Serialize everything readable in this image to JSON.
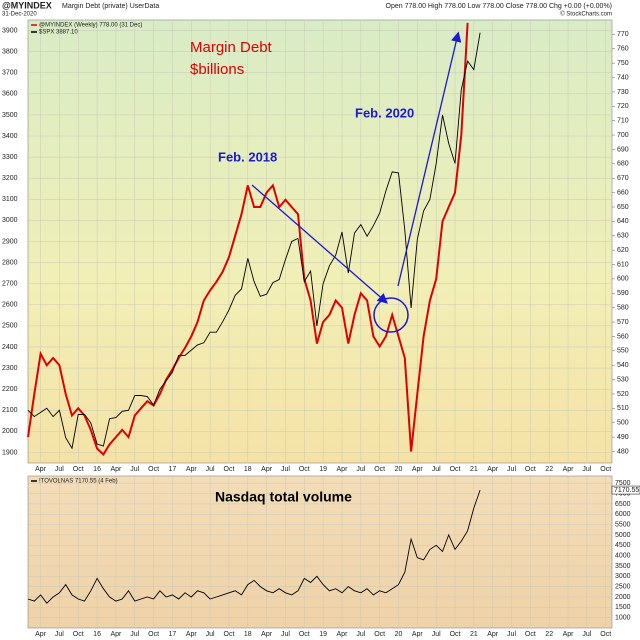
{
  "chart_data": [
    {
      "type": "line",
      "title": "@MYINDEX",
      "subtitle": "Margin Debt (private) UserData",
      "date": "31-Dec-2020",
      "quote": "Open 778.00 High 778.00 Low 778.00 Close 778.00 Chg +0.00 (+0.00%)",
      "credit": "© StockCharts.com",
      "annotations": [
        {
          "text": "Margin Debt",
          "color": "#e00000"
        },
        {
          "text": "$billions",
          "color": "#e00000"
        },
        {
          "text": "Feb. 2018",
          "color": "#1a1ad0"
        },
        {
          "text": "Feb. 2020",
          "color": "#1a1ad0"
        }
      ],
      "x": [
        "2015-02",
        "2015-03",
        "2015-04",
        "2015-05",
        "2015-06",
        "2015-07",
        "2015-08",
        "2015-09",
        "2015-10",
        "2015-11",
        "2015-12",
        "2016-01",
        "2016-02",
        "2016-03",
        "2016-04",
        "2016-05",
        "2016-06",
        "2016-07",
        "2016-08",
        "2016-09",
        "2016-10",
        "2016-11",
        "2016-12",
        "2017-01",
        "2017-02",
        "2017-03",
        "2017-04",
        "2017-05",
        "2017-06",
        "2017-07",
        "2017-08",
        "2017-09",
        "2017-10",
        "2017-11",
        "2017-12",
        "2018-01",
        "2018-02",
        "2018-03",
        "2018-04",
        "2018-05",
        "2018-06",
        "2018-07",
        "2018-08",
        "2018-09",
        "2018-10",
        "2018-11",
        "2018-12",
        "2019-01",
        "2019-02",
        "2019-03",
        "2019-04",
        "2019-05",
        "2019-06",
        "2019-07",
        "2019-08",
        "2019-09",
        "2019-10",
        "2019-11",
        "2019-12",
        "2020-01",
        "2020-02",
        "2020-03",
        "2020-04",
        "2020-05",
        "2020-06",
        "2020-07",
        "2020-08",
        "2020-09",
        "2020-10",
        "2020-11",
        "2020-12",
        "2021-01",
        "2021-02"
      ],
      "xlim": [
        "2015-02",
        "2022-11"
      ],
      "xticks": [
        {
          "value": "2015-04",
          "label": "Apr"
        },
        {
          "value": "2015-07",
          "label": "Jul"
        },
        {
          "value": "2015-10",
          "label": "Oct"
        },
        {
          "value": "2016-01",
          "label": "16"
        },
        {
          "value": "2016-04",
          "label": "Apr"
        },
        {
          "value": "2016-07",
          "label": "Jul"
        },
        {
          "value": "2016-10",
          "label": "Oct"
        },
        {
          "value": "2017-01",
          "label": "17"
        },
        {
          "value": "2017-04",
          "label": "Apr"
        },
        {
          "value": "2017-07",
          "label": "Jul"
        },
        {
          "value": "2017-10",
          "label": "Oct"
        },
        {
          "value": "2018-01",
          "label": "18"
        },
        {
          "value": "2018-04",
          "label": "Apr"
        },
        {
          "value": "2018-07",
          "label": "Jul"
        },
        {
          "value": "2018-10",
          "label": "Oct"
        },
        {
          "value": "2019-01",
          "label": "19"
        },
        {
          "value": "2019-04",
          "label": "Apr"
        },
        {
          "value": "2019-07",
          "label": "Jul"
        },
        {
          "value": "2019-10",
          "label": "Oct"
        },
        {
          "value": "2020-01",
          "label": "20"
        },
        {
          "value": "2020-04",
          "label": "Apr"
        },
        {
          "value": "2020-07",
          "label": "Jul"
        },
        {
          "value": "2020-10",
          "label": "Oct"
        },
        {
          "value": "2021-01",
          "label": "21"
        },
        {
          "value": "2021-04",
          "label": "Apr"
        },
        {
          "value": "2021-07",
          "label": "Jul"
        },
        {
          "value": "2021-10",
          "label": "Oct"
        },
        {
          "value": "2022-01",
          "label": "22"
        },
        {
          "value": "2022-04",
          "label": "Apr"
        },
        {
          "value": "2022-07",
          "label": "Jul"
        },
        {
          "value": "2022-10",
          "label": "Oct"
        }
      ],
      "ylim": [
        1850,
        3950
      ],
      "yticks": [
        1900,
        2000,
        2100,
        2200,
        2300,
        2400,
        2500,
        2600,
        2700,
        2800,
        2900,
        3000,
        3100,
        3200,
        3300,
        3400,
        3500,
        3600,
        3700,
        3800,
        3900
      ],
      "y2lim": [
        472,
        780
      ],
      "y2ticks": [
        480,
        490,
        500,
        510,
        520,
        530,
        540,
        550,
        560,
        570,
        580,
        590,
        600,
        610,
        620,
        630,
        640,
        650,
        660,
        670,
        680,
        690,
        700,
        710,
        720,
        730,
        740,
        750,
        760,
        770
      ],
      "series": [
        {
          "name": "@MYINDEX (Weekly) 778.00 (31 Dec)",
          "color": "#e00000",
          "axis": "y2",
          "values": [
            490,
            520,
            548,
            540,
            545,
            540,
            520,
            505,
            510,
            505,
            495,
            482,
            478,
            485,
            490,
            495,
            490,
            505,
            510,
            515,
            512,
            520,
            530,
            537,
            545,
            552,
            560,
            570,
            585,
            592,
            598,
            605,
            615,
            630,
            645,
            665,
            650,
            650,
            660,
            665,
            650,
            655,
            650,
            645,
            600,
            585,
            555,
            570,
            575,
            585,
            580,
            555,
            575,
            590,
            585,
            560,
            553,
            560,
            575,
            560,
            545,
            480,
            520,
            560,
            585,
            600,
            640,
            650,
            660,
            700,
            778,
            null,
            null
          ]
        },
        {
          "name": "$SPX 3887.10",
          "color": "#000000",
          "values": [
            2100,
            2070,
            2090,
            2110,
            2070,
            2100,
            1970,
            1920,
            2080,
            2080,
            2040,
            1940,
            1930,
            2060,
            2065,
            2095,
            2100,
            2170,
            2170,
            2165,
            2125,
            2200,
            2240,
            2280,
            2360,
            2360,
            2385,
            2410,
            2420,
            2470,
            2470,
            2520,
            2575,
            2645,
            2675,
            2820,
            2710,
            2640,
            2650,
            2705,
            2720,
            2815,
            2900,
            2915,
            2710,
            2760,
            2500,
            2700,
            2785,
            2835,
            2945,
            2750,
            2940,
            2980,
            2925,
            2975,
            3035,
            3140,
            3230,
            3225,
            2955,
            2585,
            2910,
            3045,
            3100,
            3270,
            3500,
            3365,
            3270,
            3620,
            3755,
            3715,
            3890
          ]
        }
      ]
    },
    {
      "type": "line",
      "annotations": [
        {
          "text": "Nasdaq total volume",
          "color": "#000000"
        }
      ],
      "x": [
        "2015-02",
        "2015-03",
        "2015-04",
        "2015-05",
        "2015-06",
        "2015-07",
        "2015-08",
        "2015-09",
        "2015-10",
        "2015-11",
        "2015-12",
        "2016-01",
        "2016-02",
        "2016-03",
        "2016-04",
        "2016-05",
        "2016-06",
        "2016-07",
        "2016-08",
        "2016-09",
        "2016-10",
        "2016-11",
        "2016-12",
        "2017-01",
        "2017-02",
        "2017-03",
        "2017-04",
        "2017-05",
        "2017-06",
        "2017-07",
        "2017-08",
        "2017-09",
        "2017-10",
        "2017-11",
        "2017-12",
        "2018-01",
        "2018-02",
        "2018-03",
        "2018-04",
        "2018-05",
        "2018-06",
        "2018-07",
        "2018-08",
        "2018-09",
        "2018-10",
        "2018-11",
        "2018-12",
        "2019-01",
        "2019-02",
        "2019-03",
        "2019-04",
        "2019-05",
        "2019-06",
        "2019-07",
        "2019-08",
        "2019-09",
        "2019-10",
        "2019-11",
        "2019-12",
        "2020-01",
        "2020-02",
        "2020-03",
        "2020-04",
        "2020-05",
        "2020-06",
        "2020-07",
        "2020-08",
        "2020-09",
        "2020-10",
        "2020-11",
        "2020-12",
        "2021-01",
        "2021-02"
      ],
      "xlim": [
        "2015-02",
        "2022-11"
      ],
      "xticks": [
        {
          "value": "2015-04",
          "label": "Apr"
        },
        {
          "value": "2015-07",
          "label": "Jul"
        },
        {
          "value": "2015-10",
          "label": "Oct"
        },
        {
          "value": "2016-01",
          "label": "16"
        },
        {
          "value": "2016-04",
          "label": "Apr"
        },
        {
          "value": "2016-07",
          "label": "Jul"
        },
        {
          "value": "2016-10",
          "label": "Oct"
        },
        {
          "value": "2017-01",
          "label": "17"
        },
        {
          "value": "2017-04",
          "label": "Apr"
        },
        {
          "value": "2017-07",
          "label": "Jul"
        },
        {
          "value": "2017-10",
          "label": "Oct"
        },
        {
          "value": "2018-01",
          "label": "18"
        },
        {
          "value": "2018-04",
          "label": "Apr"
        },
        {
          "value": "2018-07",
          "label": "Jul"
        },
        {
          "value": "2018-10",
          "label": "Oct"
        },
        {
          "value": "2019-01",
          "label": "19"
        },
        {
          "value": "2019-04",
          "label": "Apr"
        },
        {
          "value": "2019-07",
          "label": "Jul"
        },
        {
          "value": "2019-10",
          "label": "Oct"
        },
        {
          "value": "2020-01",
          "label": "20"
        },
        {
          "value": "2020-04",
          "label": "Apr"
        },
        {
          "value": "2020-07",
          "label": "Jul"
        },
        {
          "value": "2020-10",
          "label": "Oct"
        },
        {
          "value": "2021-01",
          "label": "21"
        },
        {
          "value": "2021-04",
          "label": "Apr"
        },
        {
          "value": "2021-07",
          "label": "Jul"
        },
        {
          "value": "2021-10",
          "label": "Oct"
        },
        {
          "value": "2022-01",
          "label": "22"
        },
        {
          "value": "2022-04",
          "label": "Apr"
        },
        {
          "value": "2022-07",
          "label": "Jul"
        },
        {
          "value": "2022-10",
          "label": "Oct"
        }
      ],
      "ylim": [
        500,
        7850
      ],
      "yticks": [
        1000,
        1500,
        2000,
        2500,
        3000,
        3500,
        4000,
        4500,
        5000,
        5500,
        6000,
        6500,
        7000,
        7500
      ],
      "series": [
        {
          "name": "!TOVOLNAS 7170.55 (4 Feb)",
          "color": "#000000",
          "values": [
            1900,
            1800,
            2100,
            1700,
            2000,
            2200,
            2600,
            2100,
            1900,
            1800,
            2300,
            2900,
            2400,
            2000,
            1800,
            1900,
            2300,
            1800,
            1900,
            2000,
            1900,
            2300,
            2000,
            2100,
            1900,
            2200,
            2000,
            2300,
            2200,
            1900,
            2000,
            2100,
            2200,
            2300,
            2100,
            2600,
            2800,
            2500,
            2300,
            2200,
            2400,
            2200,
            2100,
            2300,
            2900,
            2700,
            3000,
            2600,
            2300,
            2400,
            2200,
            2500,
            2300,
            2200,
            2400,
            2100,
            2300,
            2200,
            2400,
            2600,
            3200,
            4800,
            3900,
            3800,
            4300,
            4500,
            4200,
            5000,
            4300,
            4700,
            5200,
            6300,
            7170.55
          ]
        }
      ]
    }
  ]
}
